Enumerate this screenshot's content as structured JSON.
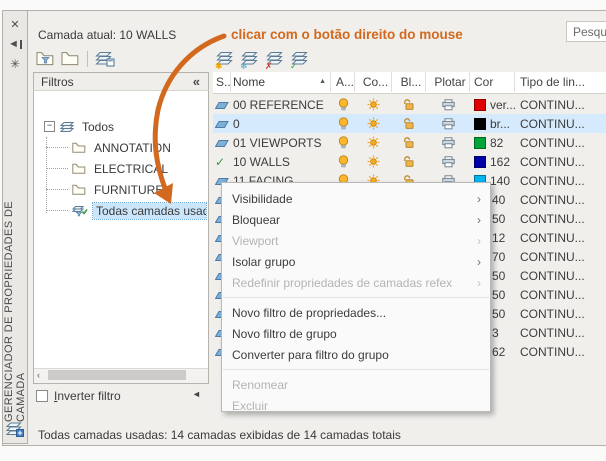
{
  "palette": {
    "vertical_title": "GERENCIADOR DE PROPRIEDADES DE CAMADA",
    "current_layer": "Camada atual: 10 WALLS",
    "search_text": "Pesqui",
    "status_text": "Todas camadas usadas: 14 camadas exibidas de 14 camadas totais",
    "titlebar": {
      "close_glyph": "✕",
      "pin_glyph": "◄",
      "properties_glyph": "✳"
    }
  },
  "annotation": {
    "text": "clicar com o botão direito do mouse",
    "color": "#d2691e"
  },
  "left_toolbar": [
    {
      "name": "new-property-filter",
      "type": "folder-filter"
    },
    {
      "name": "new-group-filter",
      "type": "folder"
    },
    {
      "name": "divider",
      "type": "divider"
    },
    {
      "name": "layer-states-manager",
      "type": "stack-box"
    }
  ],
  "right_toolbar": [
    {
      "name": "new-layer",
      "badge": "✱",
      "badge_color": "#f0a500"
    },
    {
      "name": "new-layer-frozen-viewports",
      "badge": "❄",
      "badge_color": "#3fa9c9"
    },
    {
      "name": "delete-layer",
      "badge": "✗",
      "badge_color": "#d03a2b"
    },
    {
      "name": "set-current-layer",
      "badge": "✓",
      "badge_color": "#2f9e44"
    }
  ],
  "filters_panel": {
    "header": "Filtros",
    "collapse_glyph": "«",
    "scroll_left_glyph": "◄",
    "partial_arrow_glyph": "◄",
    "expander_glyph": "−",
    "invert_filter_label": "Inverter filtro",
    "invert_filter_checked": false,
    "tree": [
      {
        "label": "Todos",
        "icon": "tree-stack",
        "level": 0,
        "expander": true,
        "selected": false
      },
      {
        "label": "ANNOTATION",
        "icon": "folder",
        "level": 1,
        "expander": false,
        "selected": false
      },
      {
        "label": "ELECTRICAL",
        "icon": "folder",
        "level": 1,
        "expander": false,
        "selected": false
      },
      {
        "label": "FURNITURE",
        "icon": "folder",
        "level": 1,
        "expander": false,
        "selected": false
      },
      {
        "label": "Todas camadas usadas",
        "icon": "used-filter",
        "level": 1,
        "expander": false,
        "selected": true
      }
    ]
  },
  "layer_table": {
    "sort_glyph": "▲",
    "columns": [
      {
        "id": "status",
        "label": "S.."
      },
      {
        "id": "name",
        "label": "Nome",
        "sort": "asc"
      },
      {
        "id": "on",
        "label": "A..."
      },
      {
        "id": "freeze",
        "label": "Co..."
      },
      {
        "id": "lock",
        "label": "Bl..."
      },
      {
        "id": "plot",
        "label": "Plotar"
      },
      {
        "id": "color",
        "label": "Cor"
      },
      {
        "id": "linetype",
        "label": "Tipo de lin..."
      }
    ],
    "rows": [
      {
        "name": "00 REFERENCE",
        "status": "layer",
        "color": "ver...",
        "hex": "#e00000",
        "linetype": "CONTINU...",
        "selected": false,
        "covered": false
      },
      {
        "name": "0",
        "status": "layer",
        "color": "br...",
        "hex": "#000000",
        "linetype": "CONTINU...",
        "selected": true,
        "covered": false
      },
      {
        "name": "01 VIEWPORTS",
        "status": "layer",
        "color": "82",
        "hex": "#00a33a",
        "linetype": "CONTINU...",
        "selected": false,
        "covered": false
      },
      {
        "name": "10 WALLS",
        "status": "current",
        "color": "162",
        "hex": "#0000a8",
        "linetype": "CONTINU...",
        "selected": false,
        "covered": false
      },
      {
        "name": "11 FACING",
        "status": "layer",
        "color": "140",
        "hex": "#00b4f0",
        "linetype": "CONTINU...",
        "selected": false,
        "covered": false
      },
      {
        "name": "",
        "status": "layer",
        "color": "40",
        "hex": "",
        "linetype": "CONTINU...",
        "selected": false,
        "covered": true
      },
      {
        "name": "",
        "status": "layer",
        "color": "50",
        "hex": "",
        "linetype": "CONTINU...",
        "selected": false,
        "covered": true
      },
      {
        "name": "",
        "status": "layer",
        "color": "12",
        "hex": "",
        "linetype": "CONTINU...",
        "selected": false,
        "covered": true
      },
      {
        "name": "",
        "status": "layer",
        "color": "70",
        "hex": "",
        "linetype": "CONTINU...",
        "selected": false,
        "covered": true
      },
      {
        "name": "",
        "status": "layer",
        "color": "50",
        "hex": "",
        "linetype": "CONTINU...",
        "selected": false,
        "covered": true
      },
      {
        "name": "",
        "status": "layer",
        "color": "50",
        "hex": "",
        "linetype": "CONTINU...",
        "selected": false,
        "covered": true
      },
      {
        "name": "",
        "status": "layer",
        "color": "50",
        "hex": "",
        "linetype": "CONTINU...",
        "selected": false,
        "covered": true
      },
      {
        "name": "",
        "status": "layer",
        "color": "3",
        "hex": "",
        "linetype": "CONTINU...",
        "selected": false,
        "covered": true
      },
      {
        "name": "",
        "status": "layer",
        "color": "62",
        "hex": "",
        "linetype": "CONTINU...",
        "selected": false,
        "covered": true
      }
    ]
  },
  "context_menu": {
    "submenu_glyph": "›",
    "items": [
      {
        "label": "Visibilidade",
        "enabled": true,
        "submenu": true
      },
      {
        "label": "Bloquear",
        "enabled": true,
        "submenu": true
      },
      {
        "label": "Viewport",
        "enabled": false,
        "submenu": true
      },
      {
        "label": "Isolar grupo",
        "enabled": true,
        "submenu": true
      },
      {
        "label": "Redefinir propriedades de camadas refex",
        "enabled": false,
        "submenu": true
      },
      {
        "separator": true
      },
      {
        "label": "Novo filtro de propriedades...",
        "enabled": true,
        "submenu": false
      },
      {
        "label": "Novo filtro de grupo",
        "enabled": true,
        "submenu": false
      },
      {
        "label": "Converter para filtro do grupo",
        "enabled": true,
        "submenu": false
      },
      {
        "separator": true
      },
      {
        "label": "Renomear",
        "enabled": false,
        "submenu": false
      },
      {
        "label": "Excluir",
        "enabled": false,
        "submenu": false
      }
    ]
  }
}
